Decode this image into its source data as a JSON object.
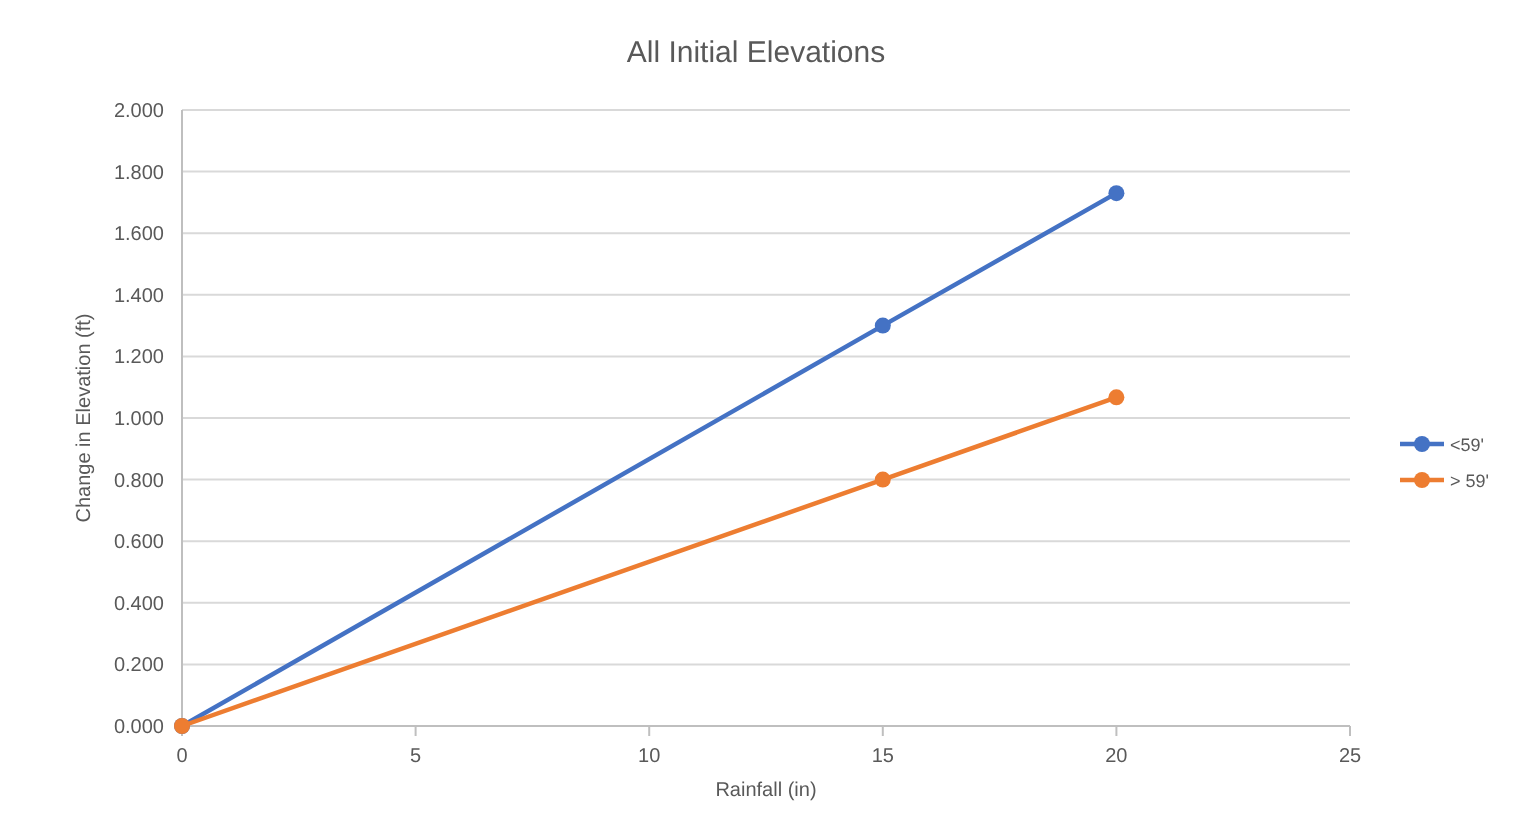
{
  "chart_data": {
    "type": "line",
    "title": "All Initial Elevations",
    "xlabel": "Rainfall (in)",
    "ylabel": "Change in Elevation (ft)",
    "x": [
      0,
      15,
      20
    ],
    "series": [
      {
        "name": "<59'",
        "color": "#4472c4",
        "values": [
          0,
          1.3,
          1.73
        ]
      },
      {
        "name": "> 59'",
        "color": "#ed7d31",
        "values": [
          0,
          0.8,
          1.067
        ]
      }
    ],
    "xlim": [
      0,
      25
    ],
    "xticks": [
      0,
      5,
      10,
      15,
      20,
      25
    ],
    "ylim": [
      0,
      2
    ],
    "yticks": [
      {
        "value": 0,
        "label": "0.000"
      },
      {
        "value": 0.2,
        "label": "0.200"
      },
      {
        "value": 0.4,
        "label": "0.400"
      },
      {
        "value": 0.6,
        "label": "0.600"
      },
      {
        "value": 0.8,
        "label": "0.800"
      },
      {
        "value": 1,
        "label": "1.000"
      },
      {
        "value": 1.2,
        "label": "1.200"
      },
      {
        "value": 1.4,
        "label": "1.400"
      },
      {
        "value": 1.6,
        "label": "1.600"
      },
      {
        "value": 1.8,
        "label": "1.800"
      },
      {
        "value": 2,
        "label": "2.000"
      }
    ],
    "grid": "y",
    "legend": "right",
    "marker": "circle",
    "line_style": "solid"
  }
}
